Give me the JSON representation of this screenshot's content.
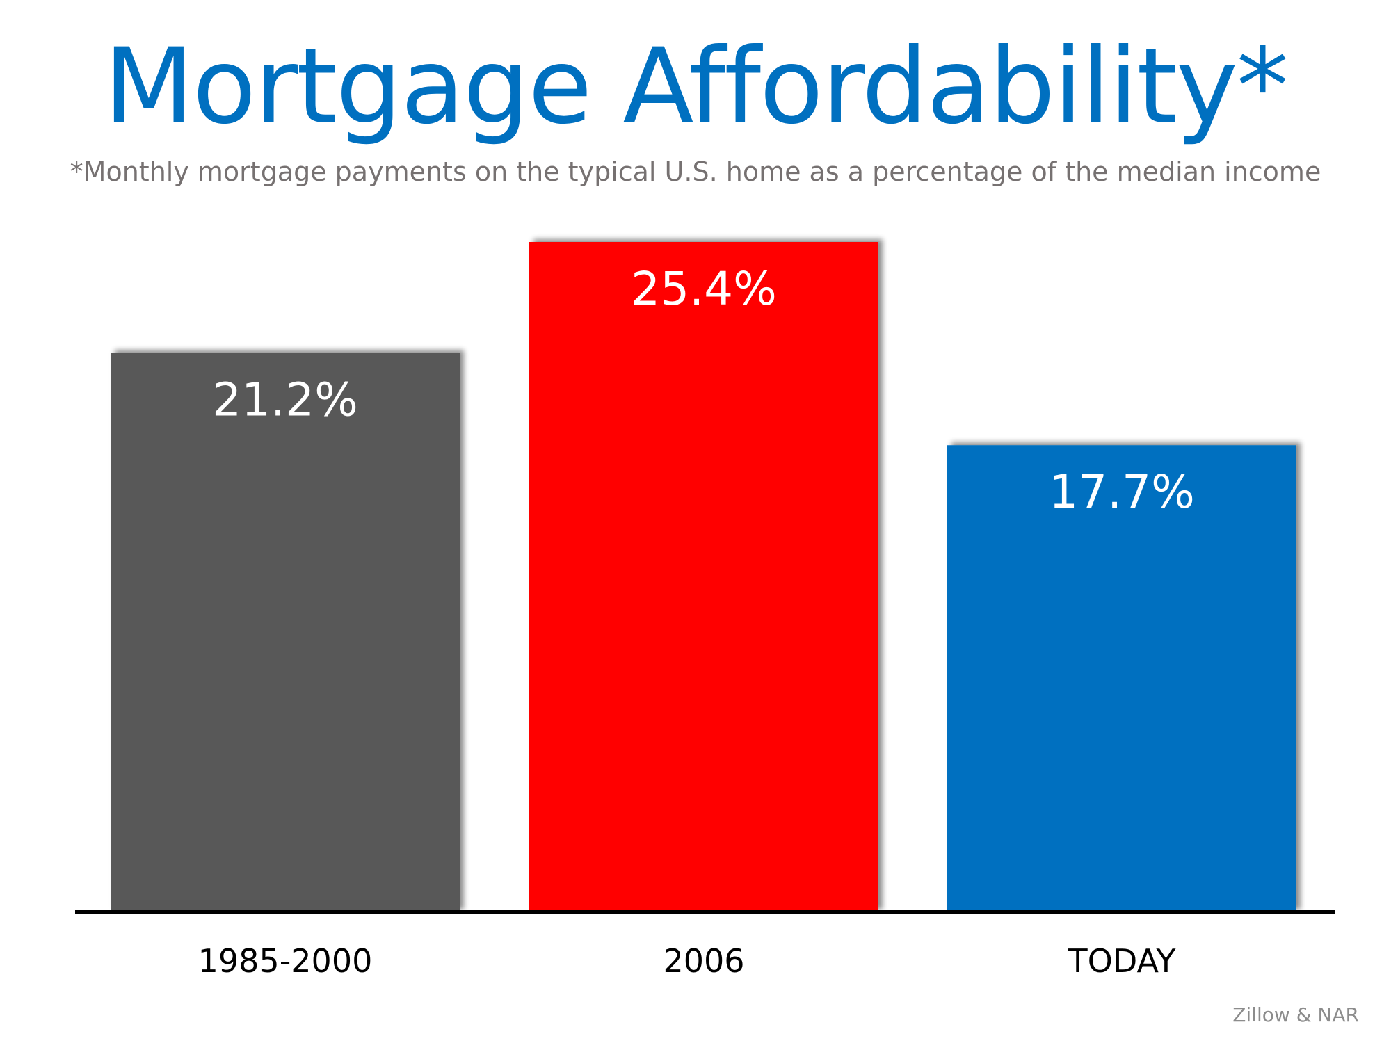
{
  "title": "Mortgage Affordability*",
  "subtitle": "*Monthly mortgage payments on the typical U.S. home as a percentage of the median income",
  "source": "Zillow & NAR",
  "chart_data": {
    "type": "bar",
    "title": "Mortgage Affordability*",
    "subtitle": "*Monthly mortgage payments on the typical U.S. home as a percentage of the median income",
    "categories": [
      "1985-2000",
      "2006",
      "TODAY"
    ],
    "values": [
      21.2,
      25.4,
      17.7
    ],
    "data_labels": [
      "21.2%",
      "25.4%",
      "17.7%"
    ],
    "colors": [
      "#595959",
      "#ff0000",
      "#0070c0"
    ],
    "unit": "%",
    "xlabel": "",
    "ylabel": "",
    "ylim": [
      0,
      25.4
    ],
    "grid": false,
    "legend": "none",
    "bar_label_color": "#ffffff",
    "baseline_color": "#000000"
  }
}
